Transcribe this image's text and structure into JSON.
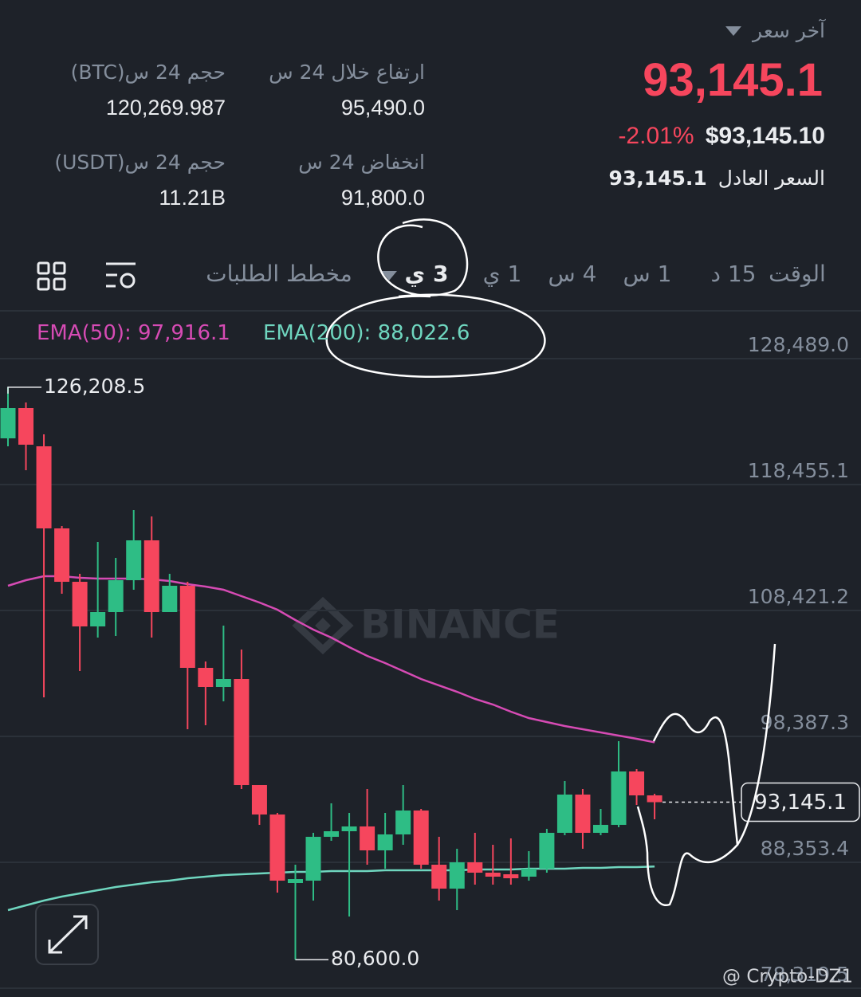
{
  "header": {
    "last_price_label": "آخر سعر",
    "last_price": "93,145.1",
    "change": "-2.01%",
    "usd_price": "$93,145.10",
    "fair_price_label": "السعر العادل",
    "fair_price": "93,145.1"
  },
  "stats": [
    {
      "label": "ارتفاع خلال 24 س",
      "value": "95,490.0"
    },
    {
      "label": "انخفاض 24 س",
      "value": "91,800.0"
    },
    {
      "label": "حجم 24 س(BTC)",
      "value": "120,269.987"
    },
    {
      "label": "حجم 24 س(USDT)",
      "value": "11.21B"
    }
  ],
  "tabs": {
    "items": [
      "الوقت",
      "15 د",
      "1 س",
      "4 س",
      "1 ي",
      "3 ي",
      "مخطط الطلبات"
    ],
    "active": 5
  },
  "chart_data": {
    "type": "candlestick",
    "legend": [
      {
        "text": "EMA(50): 97,916.1",
        "color": "#d64bb4"
      },
      {
        "text": "EMA(200): 88,022.6",
        "color": "#6fd6bf"
      }
    ],
    "ylim": [
      77621,
      131982
    ],
    "yticks": [
      {
        "value": 128489,
        "label": "128,489.0"
      },
      {
        "value": 118455.1,
        "label": "118,455.1"
      },
      {
        "value": 108421.2,
        "label": "108,421.2"
      },
      {
        "value": 98387.3,
        "label": "98,387.3"
      },
      {
        "value": 88353.4,
        "label": "88,353.4"
      },
      {
        "value": 78319.5,
        "label": "78,319.5"
      }
    ],
    "grid": true,
    "colors": {
      "up": "#2ebd85",
      "down": "#f6465d"
    },
    "open": [
      122138,
      124552,
      121503,
      114962,
      110707,
      107151,
      108294,
      110834,
      114010,
      108294,
      110390,
      103849,
      102324,
      102960,
      94513,
      92163,
      86702,
      86892,
      90385,
      90830,
      91211,
      89306,
      90576,
      92481,
      88163,
      86257,
      88353,
      87528,
      87401,
      87210,
      87845,
      90703,
      93751,
      90703,
      91338,
      95593,
      93688
    ],
    "high": [
      126208.5,
      124996,
      122456,
      115153,
      111342,
      113883,
      112612,
      116423,
      115915,
      111342,
      110707,
      104357,
      107214,
      105309,
      94513,
      92290,
      88163,
      90703,
      93053,
      92290,
      94196,
      92290,
      94513,
      92608,
      90385,
      89433,
      90703,
      89750,
      90258,
      89242,
      91020,
      94831,
      94196,
      92608,
      98006,
      95783,
      93815
    ],
    "low": [
      121503,
      119598,
      101499,
      109755,
      103595,
      106262,
      106389,
      110072,
      106262,
      108294,
      98959,
      99276,
      101181,
      94196,
      91338,
      85940,
      80600,
      85305,
      90068,
      84035,
      88163,
      87845,
      89750,
      87845,
      85305,
      84543,
      86575,
      86575,
      86575,
      86892,
      87528,
      90512,
      89433,
      90512,
      91147,
      92926,
      91782
    ],
    "close": [
      124552,
      121630,
      114962,
      110707,
      107151,
      108294,
      110834,
      114010,
      108294,
      110390,
      103849,
      102324,
      102960,
      94513,
      92163,
      86892,
      87019,
      90385,
      90830,
      91211,
      89306,
      90576,
      92481,
      88163,
      86257,
      88353,
      87528,
      87210,
      87083,
      87845,
      90703,
      93751,
      90703,
      91338,
      95593,
      93688,
      93145.1
    ],
    "lines": [
      {
        "color": "#d64bb4",
        "values": [
          110390,
          110834,
          111152,
          111152,
          111025,
          110961,
          110961,
          110961,
          110898,
          110771,
          110517,
          110326,
          110072,
          109564,
          109056,
          108485,
          107659,
          106897,
          106262,
          105500,
          104801,
          104230,
          103595,
          102960,
          102451,
          101943,
          101372,
          100927,
          100356,
          99848,
          99530,
          99213,
          98959,
          98705,
          98451,
          98197,
          97916.1
        ]
      },
      {
        "color": "#6fd6bf",
        "values": [
          84543,
          84924,
          85305,
          85622,
          85876,
          86130,
          86384,
          86575,
          86765,
          86892,
          87083,
          87210,
          87337,
          87401,
          87464,
          87528,
          87591,
          87591,
          87655,
          87655,
          87655,
          87718,
          87718,
          87718,
          87718,
          87718,
          87782,
          87782,
          87782,
          87845,
          87845,
          87845,
          87909,
          87909,
          87972,
          87972,
          88022.6
        ]
      }
    ],
    "high_label": "126,208.5",
    "low_label": "80,600.0",
    "price_label": "93,145.1",
    "price_value": 93145.1,
    "watermark": "BINANCE",
    "credit": "@ Crypto-DZ1"
  }
}
